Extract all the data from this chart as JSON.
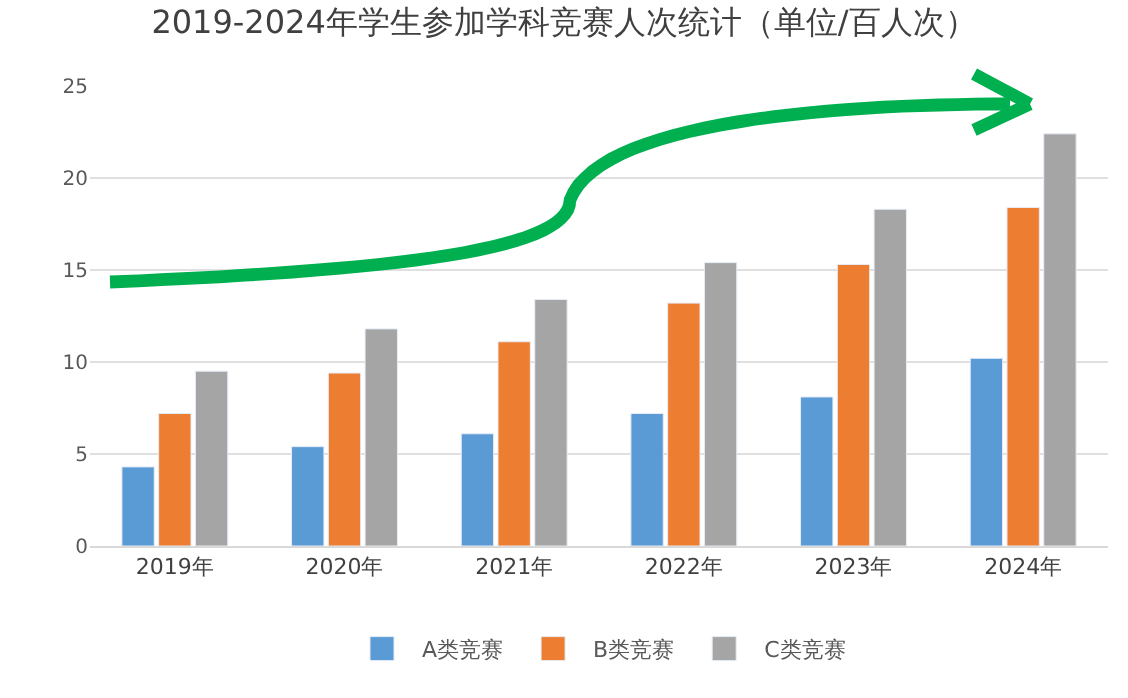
{
  "chart_data": {
    "type": "bar",
    "title": "2019-2024年学生参加学科竞赛人次统计（单位/百人次）",
    "categories": [
      "2019年",
      "2020年",
      "2021年",
      "2022年",
      "2023年",
      "2024年"
    ],
    "series": [
      {
        "name": "A类竞赛",
        "color": "#5b9bd5",
        "values": [
          4.3,
          5.4,
          6.1,
          7.2,
          8.1,
          10.2
        ]
      },
      {
        "name": "B类竞赛",
        "color": "#ed7d31",
        "values": [
          7.2,
          9.4,
          11.1,
          13.2,
          15.3,
          18.4
        ]
      },
      {
        "name": "C类竞赛",
        "color": "#a5a5a5",
        "values": [
          9.5,
          11.8,
          13.4,
          15.4,
          18.3,
          22.4
        ]
      }
    ],
    "ylim": [
      0,
      25
    ],
    "yticks": [
      0,
      5,
      10,
      15,
      20,
      25
    ],
    "grid": "y",
    "legend": "bottom"
  }
}
